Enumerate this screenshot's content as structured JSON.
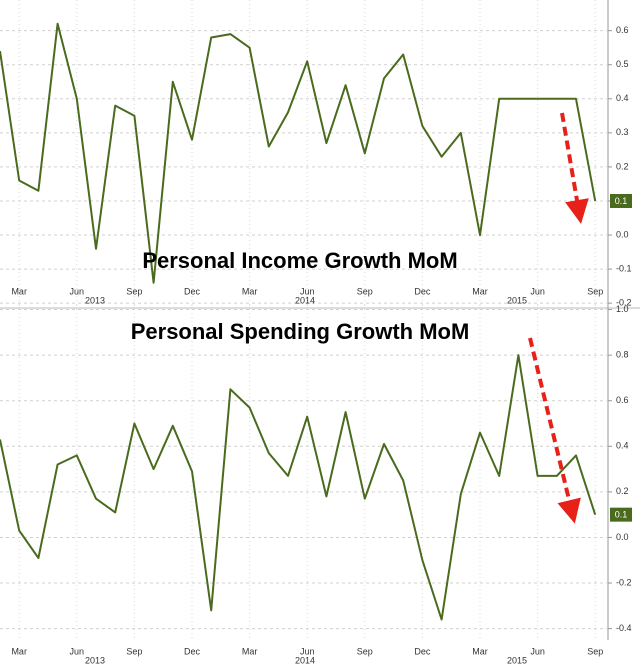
{
  "chart_data": [
    {
      "type": "line",
      "title": "Personal Income Growth MoM",
      "categories": [
        null,
        "Mar",
        null,
        null,
        "Jun",
        null,
        null,
        "Sep",
        null,
        null,
        "Dec",
        null,
        null,
        "Mar",
        null,
        null,
        "Jun",
        null,
        null,
        "Sep",
        null,
        null,
        "Dec",
        null,
        null,
        "Mar",
        null,
        null,
        "Jun",
        null,
        null,
        "Sep"
      ],
      "years": [
        "2013",
        "2014",
        "2015"
      ],
      "values": [
        0.54,
        0.16,
        0.13,
        0.62,
        0.4,
        -0.04,
        0.38,
        0.35,
        -0.14,
        0.45,
        0.28,
        0.58,
        0.59,
        0.55,
        0.26,
        0.36,
        0.51,
        0.27,
        0.44,
        0.24,
        0.46,
        0.53,
        0.32,
        0.23,
        0.3,
        0.0,
        0.4,
        0.4,
        0.4,
        0.4,
        0.4,
        0.1
      ],
      "color": "#4a6b1e",
      "ylim": [
        -0.22,
        0.69
      ],
      "yticks": [
        0.6,
        0.5,
        0.4,
        0.3,
        0.2,
        0.1,
        {
          "value": 0,
          "label": "0.0"
        },
        -0.1,
        -0.2
      ],
      "grid": true
    },
    {
      "type": "line",
      "title": "Personal Spending Growth MoM",
      "categories": [
        null,
        "Mar",
        null,
        null,
        "Jun",
        null,
        null,
        "Sep",
        null,
        null,
        "Dec",
        null,
        null,
        "Mar",
        null,
        null,
        "Jun",
        null,
        null,
        "Sep",
        null,
        null,
        "Dec",
        null,
        null,
        "Mar",
        null,
        null,
        "Jun",
        null,
        null,
        "Sep"
      ],
      "years": [
        "2013",
        "2014",
        "2015"
      ],
      "values": [
        0.43,
        0.03,
        -0.09,
        0.32,
        0.36,
        0.17,
        0.11,
        0.5,
        0.3,
        0.49,
        0.29,
        -0.32,
        0.65,
        0.57,
        0.37,
        0.27,
        0.53,
        0.18,
        0.55,
        0.17,
        0.41,
        0.25,
        -0.1,
        -0.36,
        0.19,
        0.46,
        0.27,
        0.8,
        0.27,
        0.27,
        0.36,
        0.1
      ],
      "color": "#4a6b1e",
      "ylim": [
        -0.45,
        1.02
      ],
      "yticks": [
        {
          "value": 1,
          "label": "1.0"
        },
        0.8,
        0.6,
        0.4,
        0.2,
        {
          "value": 0,
          "label": "0.0"
        },
        -0.2,
        -0.4
      ],
      "grid": true
    }
  ]
}
